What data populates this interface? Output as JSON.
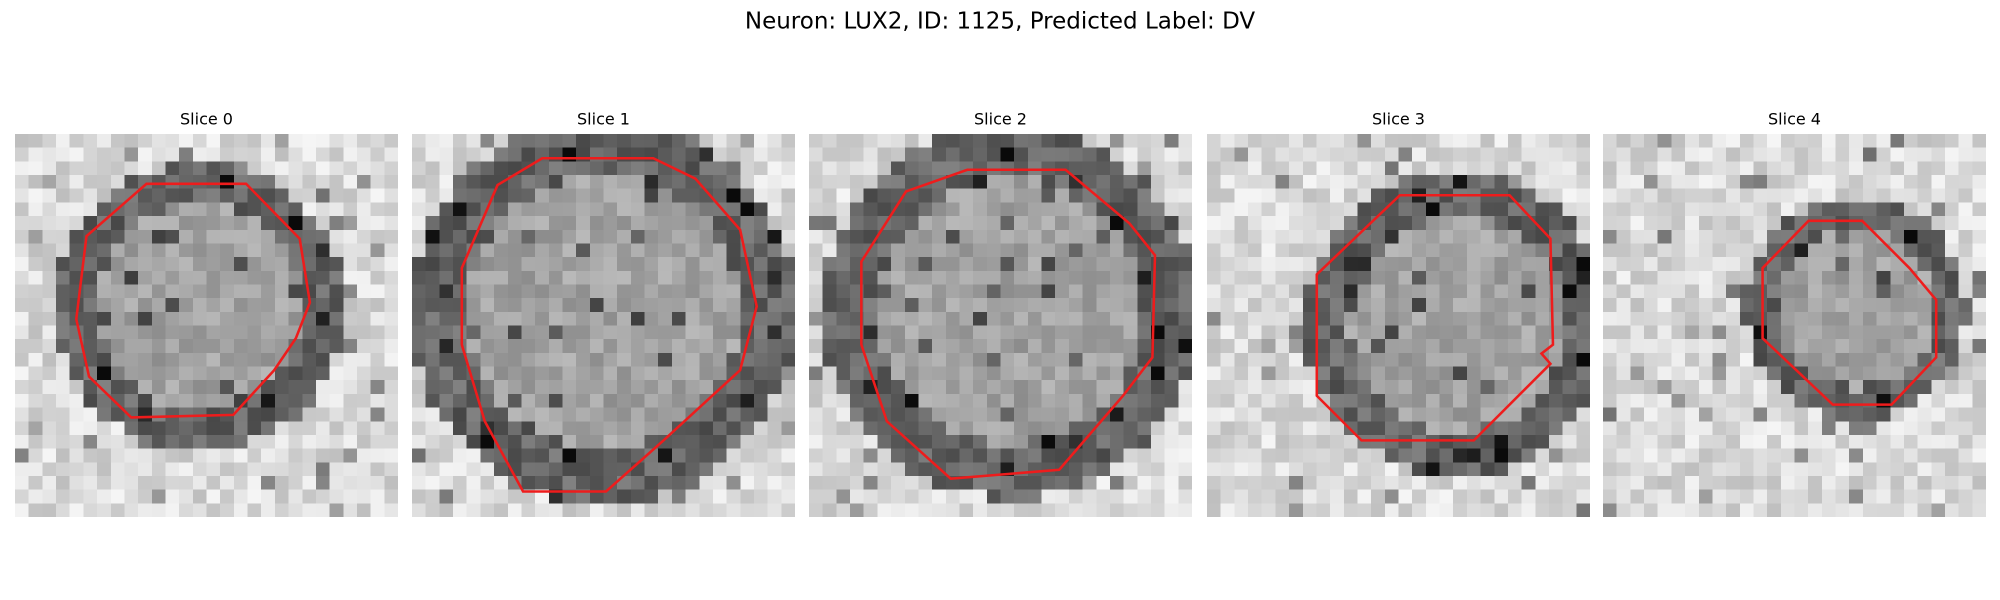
{
  "title": "Neuron: LUX2, ID: 1125, Predicted Label: DV",
  "panels": [
    {
      "title": "Slice 0"
    },
    {
      "title": "Slice 1"
    },
    {
      "title": "Slice 2"
    },
    {
      "title": "Slice 3"
    },
    {
      "title": "Slice 4"
    }
  ]
}
